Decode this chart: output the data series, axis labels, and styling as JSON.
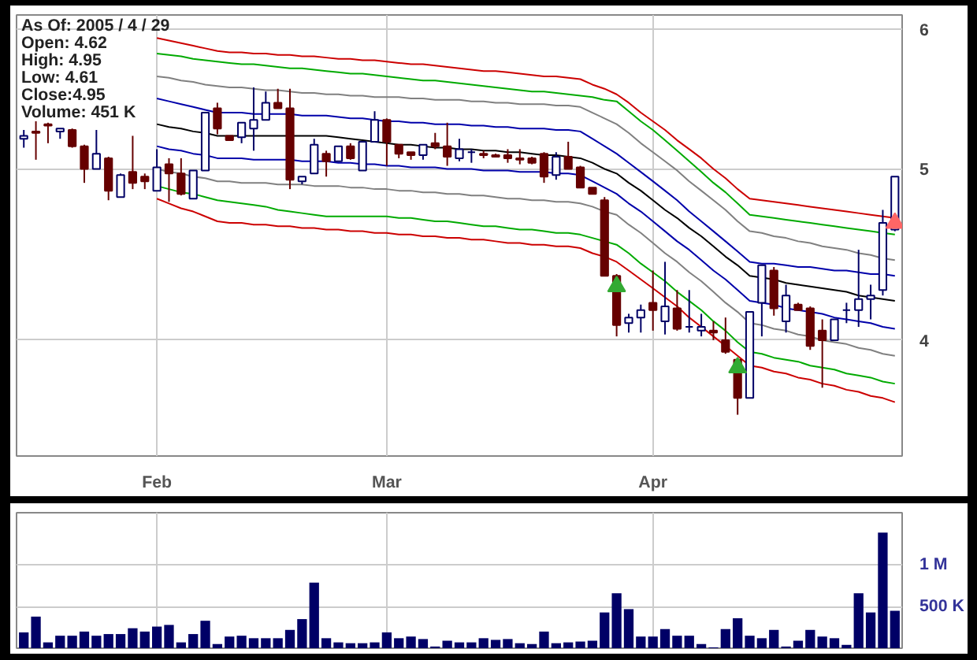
{
  "chart_data": [
    {
      "type": "candlestick",
      "annotations": [
        "As Of: 2005 / 4 / 29",
        "Open: 4.62",
        "High: 4.95",
        "Low: 4.61",
        "Close:4.95",
        "Volume: 451 K"
      ],
      "categories": [
        null,
        null,
        null,
        null,
        null,
        null,
        null,
        null,
        null,
        null,
        null,
        "Feb",
        null,
        null,
        null,
        null,
        null,
        null,
        null,
        null,
        null,
        null,
        null,
        null,
        null,
        null,
        null,
        null,
        null,
        null,
        "Mar",
        null,
        null,
        null,
        null,
        null,
        null,
        null,
        null,
        null,
        null,
        null,
        null,
        null,
        null,
        null,
        null,
        null,
        null,
        null,
        null,
        null,
        "Apr",
        null,
        null,
        null,
        null,
        null,
        null,
        null,
        null,
        null,
        null,
        null,
        null,
        null,
        null,
        null,
        null,
        null,
        null,
        null,
        null
      ],
      "ohlc": [
        [
          5.2,
          5.26,
          5.14,
          5.22
        ],
        [
          5.25,
          5.32,
          5.06,
          5.24
        ],
        [
          5.3,
          5.31,
          5.17,
          5.29
        ],
        [
          5.25,
          5.27,
          5.2,
          5.27
        ],
        [
          5.26,
          5.27,
          5.14,
          5.15
        ],
        [
          5.15,
          5.16,
          4.91,
          5.0
        ],
        [
          5.0,
          5.26,
          5.0,
          5.1
        ],
        [
          5.07,
          5.08,
          4.8,
          4.86
        ],
        [
          4.82,
          4.97,
          4.82,
          4.96
        ],
        [
          4.98,
          5.22,
          4.87,
          4.91
        ],
        [
          4.95,
          4.97,
          4.87,
          4.92
        ],
        [
          4.86,
          5.13,
          4.86,
          5.01
        ],
        [
          5.03,
          5.07,
          4.79,
          4.97
        ],
        [
          4.97,
          5.07,
          4.83,
          4.84
        ],
        [
          4.81,
          4.99,
          4.81,
          4.99
        ],
        [
          4.99,
          5.38,
          4.99,
          5.38
        ],
        [
          5.41,
          5.45,
          5.23,
          5.27
        ],
        [
          5.22,
          5.22,
          5.19,
          5.19
        ],
        [
          5.21,
          5.31,
          5.17,
          5.31
        ],
        [
          5.27,
          5.56,
          5.12,
          5.33
        ],
        [
          5.33,
          5.53,
          5.33,
          5.45
        ],
        [
          5.45,
          5.55,
          5.41,
          5.41
        ],
        [
          5.41,
          5.55,
          4.87,
          4.93
        ],
        [
          4.92,
          4.95,
          4.9,
          4.95
        ],
        [
          4.97,
          5.2,
          4.97,
          5.16
        ],
        [
          5.1,
          5.12,
          4.95,
          5.05
        ],
        [
          5.05,
          5.15,
          5.05,
          5.15
        ],
        [
          5.15,
          5.17,
          5.06,
          5.07
        ],
        [
          4.99,
          5.18,
          4.99,
          5.18
        ],
        [
          5.18,
          5.39,
          5.18,
          5.33
        ],
        [
          5.33,
          5.34,
          5.02,
          5.18
        ],
        [
          5.16,
          5.16,
          5.07,
          5.1
        ],
        [
          5.11,
          5.11,
          5.06,
          5.09
        ],
        [
          5.09,
          5.16,
          5.06,
          5.16
        ],
        [
          5.17,
          5.24,
          5.13,
          5.15
        ],
        [
          5.15,
          5.31,
          5.02,
          5.08
        ],
        [
          5.07,
          5.2,
          5.05,
          5.13
        ],
        [
          5.11,
          5.13,
          5.04,
          5.11
        ],
        [
          5.1,
          5.12,
          5.07,
          5.09
        ],
        [
          5.09,
          5.1,
          5.08,
          5.08
        ],
        [
          5.09,
          5.13,
          5.04,
          5.07
        ],
        [
          5.07,
          5.13,
          5.03,
          5.06
        ],
        [
          5.07,
          5.08,
          5.03,
          5.04
        ],
        [
          5.1,
          5.11,
          4.91,
          4.95
        ],
        [
          4.96,
          5.11,
          4.93,
          5.08
        ],
        [
          5.08,
          5.18,
          5.0,
          5.0
        ],
        [
          5.01,
          5.02,
          4.88,
          4.88
        ],
        [
          4.88,
          4.88,
          4.84,
          4.84
        ],
        [
          4.8,
          4.82,
          4.35,
          4.35
        ],
        [
          4.35,
          4.36,
          4.02,
          4.08
        ],
        [
          4.09,
          4.14,
          4.04,
          4.12
        ],
        [
          4.12,
          4.19,
          4.04,
          4.16
        ],
        [
          4.2,
          4.38,
          4.05,
          4.16
        ],
        [
          4.1,
          4.43,
          4.03,
          4.18
        ],
        [
          4.17,
          4.27,
          4.05,
          4.06
        ],
        [
          4.07,
          4.27,
          4.04,
          4.07
        ],
        [
          4.05,
          4.14,
          4.02,
          4.07
        ],
        [
          4.05,
          4.1,
          4.0,
          4.04
        ],
        [
          4.0,
          4.12,
          3.93,
          3.94
        ],
        [
          3.9,
          3.9,
          3.63,
          3.71
        ],
        [
          3.71,
          4.15,
          3.71,
          4.15
        ],
        [
          4.2,
          4.41,
          4.02,
          4.41
        ],
        [
          4.38,
          4.4,
          4.13,
          4.17
        ],
        [
          4.1,
          4.3,
          4.04,
          4.24
        ],
        [
          4.19,
          4.2,
          4.16,
          4.16
        ],
        [
          4.17,
          4.18,
          3.95,
          3.97
        ],
        [
          4.05,
          4.11,
          3.76,
          4.0
        ],
        [
          4.0,
          4.11,
          4.0,
          4.11
        ],
        [
          4.16,
          4.2,
          4.09,
          4.16
        ],
        [
          4.16,
          4.5,
          4.07,
          4.22
        ],
        [
          4.22,
          4.3,
          4.11,
          4.24
        ],
        [
          4.27,
          4.74,
          4.24,
          4.66
        ],
        [
          4.62,
          4.95,
          4.61,
          4.95
        ]
      ],
      "series": [
        {
          "type": "line",
          "color": "#cc0000",
          "values": [
            null,
            null,
            null,
            null,
            null,
            null,
            null,
            null,
            null,
            null,
            null,
            5.93,
            5.91,
            5.89,
            5.87,
            5.85,
            5.83,
            5.82,
            5.82,
            5.81,
            5.81,
            5.8,
            5.8,
            5.79,
            5.79,
            5.78,
            5.77,
            5.77,
            5.76,
            5.76,
            5.75,
            5.74,
            5.73,
            5.73,
            5.72,
            5.71,
            5.7,
            5.69,
            5.68,
            5.68,
            5.67,
            5.66,
            5.65,
            5.64,
            5.64,
            5.63,
            5.62,
            5.58,
            5.55,
            5.51,
            5.45,
            5.38,
            5.32,
            5.26,
            5.19,
            5.13,
            5.07,
            5.0,
            4.94,
            4.87,
            4.81,
            4.8,
            4.79,
            4.78,
            4.77,
            4.76,
            4.75,
            4.74,
            4.73,
            4.72,
            4.71,
            4.7,
            4.69
          ]
        },
        {
          "type": "line",
          "color": "#00aa00",
          "values": [
            null,
            null,
            null,
            null,
            null,
            null,
            null,
            null,
            null,
            null,
            null,
            5.81,
            5.8,
            5.79,
            5.77,
            5.76,
            5.75,
            5.74,
            5.73,
            5.73,
            5.72,
            5.71,
            5.7,
            5.7,
            5.69,
            5.68,
            5.67,
            5.66,
            5.66,
            5.65,
            5.64,
            5.63,
            5.62,
            5.61,
            5.61,
            5.6,
            5.59,
            5.58,
            5.57,
            5.56,
            5.55,
            5.54,
            5.53,
            5.53,
            5.52,
            5.51,
            5.5,
            5.49,
            5.47,
            5.46,
            5.39,
            5.32,
            5.26,
            5.19,
            5.12,
            5.05,
            4.98,
            4.91,
            4.85,
            4.78,
            4.71,
            4.7,
            4.69,
            4.68,
            4.67,
            4.66,
            4.65,
            4.64,
            4.63,
            4.62,
            4.61,
            4.6,
            4.59
          ]
        },
        {
          "type": "line",
          "color": "#808080",
          "values": [
            null,
            null,
            null,
            null,
            null,
            null,
            null,
            null,
            null,
            null,
            null,
            5.64,
            5.63,
            5.61,
            5.6,
            5.58,
            5.57,
            5.56,
            5.56,
            5.55,
            5.54,
            5.54,
            5.53,
            5.52,
            5.52,
            5.51,
            5.51,
            5.5,
            5.5,
            5.49,
            5.49,
            5.49,
            5.48,
            5.48,
            5.47,
            5.47,
            5.47,
            5.46,
            5.46,
            5.45,
            5.45,
            5.44,
            5.44,
            5.44,
            5.43,
            5.43,
            5.42,
            5.38,
            5.34,
            5.3,
            5.24,
            5.17,
            5.11,
            5.05,
            4.99,
            4.92,
            4.86,
            4.8,
            4.74,
            4.67,
            4.61,
            4.6,
            4.58,
            4.57,
            4.55,
            4.54,
            4.52,
            4.51,
            4.5,
            4.48,
            4.47,
            4.45,
            4.44
          ]
        },
        {
          "type": "line",
          "color": "#0000aa",
          "values": [
            null,
            null,
            null,
            null,
            null,
            null,
            null,
            null,
            null,
            null,
            null,
            5.48,
            5.46,
            5.44,
            5.42,
            5.4,
            5.38,
            5.38,
            5.38,
            5.37,
            5.37,
            5.37,
            5.37,
            5.36,
            5.36,
            5.36,
            5.35,
            5.34,
            5.34,
            5.33,
            5.32,
            5.32,
            5.31,
            5.31,
            5.3,
            5.3,
            5.3,
            5.29,
            5.29,
            5.28,
            5.28,
            5.27,
            5.27,
            5.27,
            5.26,
            5.26,
            5.25,
            5.2,
            5.15,
            5.1,
            5.04,
            4.98,
            4.92,
            4.86,
            4.8,
            4.73,
            4.67,
            4.61,
            4.55,
            4.49,
            4.43,
            4.42,
            4.42,
            4.41,
            4.4,
            4.4,
            4.39,
            4.38,
            4.38,
            4.37,
            4.36,
            4.36,
            4.35
          ]
        },
        {
          "type": "line",
          "color": "#000000",
          "values": [
            null,
            null,
            null,
            null,
            null,
            null,
            null,
            null,
            null,
            null,
            null,
            5.3,
            5.28,
            5.27,
            5.25,
            5.24,
            5.22,
            5.22,
            5.22,
            5.22,
            5.22,
            5.22,
            5.22,
            5.22,
            5.22,
            5.22,
            5.21,
            5.2,
            5.19,
            5.18,
            5.17,
            5.16,
            5.16,
            5.15,
            5.14,
            5.14,
            5.13,
            5.13,
            5.12,
            5.12,
            5.11,
            5.11,
            5.1,
            5.09,
            5.09,
            5.08,
            5.07,
            5.04,
            5.0,
            4.97,
            4.91,
            4.86,
            4.8,
            4.74,
            4.69,
            4.63,
            4.58,
            4.52,
            4.46,
            4.41,
            4.35,
            4.34,
            4.33,
            4.31,
            4.3,
            4.29,
            4.28,
            4.27,
            4.26,
            4.24,
            4.23,
            4.22,
            4.21
          ]
        },
        {
          "type": "line",
          "color": "#0000aa",
          "values": [
            null,
            null,
            null,
            null,
            null,
            null,
            null,
            null,
            null,
            null,
            null,
            5.15,
            5.13,
            5.12,
            5.1,
            5.09,
            5.07,
            5.07,
            5.07,
            5.06,
            5.06,
            5.06,
            5.06,
            5.05,
            5.05,
            5.05,
            5.04,
            5.04,
            5.03,
            5.03,
            5.02,
            5.02,
            5.01,
            5.01,
            5.01,
            5.0,
            5.0,
            5.0,
            4.99,
            4.99,
            4.99,
            4.98,
            4.98,
            4.98,
            4.97,
            4.97,
            4.96,
            4.92,
            4.88,
            4.84,
            4.78,
            4.73,
            4.67,
            4.61,
            4.55,
            4.5,
            4.44,
            4.38,
            4.33,
            4.27,
            4.21,
            4.2,
            4.19,
            4.17,
            4.16,
            4.15,
            4.14,
            4.12,
            4.11,
            4.1,
            4.09,
            4.07,
            4.06
          ]
        },
        {
          "type": "line",
          "color": "#808080",
          "values": [
            null,
            null,
            null,
            null,
            null,
            null,
            null,
            null,
            null,
            null,
            null,
            5.0,
            4.98,
            4.97,
            4.95,
            4.94,
            4.92,
            4.92,
            4.91,
            4.91,
            4.91,
            4.9,
            4.9,
            4.9,
            4.89,
            4.89,
            4.89,
            4.88,
            4.88,
            4.87,
            4.87,
            4.86,
            4.86,
            4.85,
            4.85,
            4.84,
            4.84,
            4.83,
            4.83,
            4.82,
            4.81,
            4.81,
            4.8,
            4.8,
            4.79,
            4.79,
            4.78,
            4.76,
            4.73,
            4.71,
            4.65,
            4.6,
            4.54,
            4.48,
            4.43,
            4.37,
            4.32,
            4.26,
            4.2,
            4.15,
            4.09,
            4.08,
            4.06,
            4.05,
            4.03,
            4.02,
            4.0,
            3.99,
            3.98,
            3.96,
            3.95,
            3.93,
            3.92
          ]
        },
        {
          "type": "line",
          "color": "#00aa00",
          "values": [
            null,
            null,
            null,
            null,
            null,
            null,
            null,
            null,
            null,
            null,
            null,
            4.89,
            4.87,
            4.85,
            4.84,
            4.82,
            4.8,
            4.79,
            4.78,
            4.77,
            4.76,
            4.74,
            4.73,
            4.72,
            4.71,
            4.7,
            4.7,
            4.7,
            4.7,
            4.7,
            4.7,
            4.69,
            4.69,
            4.68,
            4.67,
            4.67,
            4.66,
            4.65,
            4.64,
            4.64,
            4.63,
            4.62,
            4.62,
            4.61,
            4.6,
            4.6,
            4.59,
            4.57,
            4.55,
            4.53,
            4.48,
            4.42,
            4.37,
            4.32,
            4.26,
            4.21,
            4.16,
            4.1,
            4.05,
            3.99,
            3.94,
            3.93,
            3.91,
            3.9,
            3.89,
            3.87,
            3.86,
            3.85,
            3.83,
            3.82,
            3.81,
            3.79,
            3.78
          ]
        },
        {
          "type": "line",
          "color": "#cc0000",
          "values": [
            null,
            null,
            null,
            null,
            null,
            null,
            null,
            null,
            null,
            null,
            null,
            4.81,
            4.78,
            4.75,
            4.73,
            4.7,
            4.67,
            4.66,
            4.66,
            4.65,
            4.65,
            4.64,
            4.64,
            4.63,
            4.63,
            4.62,
            4.62,
            4.61,
            4.61,
            4.6,
            4.6,
            4.59,
            4.59,
            4.58,
            4.58,
            4.57,
            4.57,
            4.56,
            4.56,
            4.55,
            4.54,
            4.54,
            4.53,
            4.53,
            4.52,
            4.52,
            4.51,
            4.48,
            4.46,
            4.43,
            4.38,
            4.33,
            4.28,
            4.23,
            4.18,
            4.12,
            4.07,
            4.02,
            3.97,
            3.92,
            3.87,
            3.86,
            3.84,
            3.83,
            3.81,
            3.8,
            3.78,
            3.77,
            3.75,
            3.74,
            3.72,
            3.71,
            3.69
          ]
        },
        {
          "type": "scatter",
          "marker": "triangle",
          "color": "#33aa33",
          "values": [
            null,
            null,
            null,
            null,
            null,
            null,
            null,
            null,
            null,
            null,
            null,
            null,
            null,
            null,
            null,
            null,
            null,
            null,
            null,
            null,
            null,
            null,
            null,
            null,
            null,
            null,
            null,
            null,
            null,
            null,
            null,
            null,
            null,
            null,
            null,
            null,
            null,
            null,
            null,
            null,
            null,
            null,
            null,
            null,
            null,
            null,
            null,
            null,
            null,
            4.29,
            null,
            null,
            null,
            null,
            null,
            null,
            null,
            null,
            null,
            3.86,
            null,
            null,
            null,
            null,
            null,
            null,
            null,
            null,
            null,
            null,
            null,
            null,
            null
          ]
        },
        {
          "type": "scatter",
          "marker": "triangle",
          "color": "#ff6666",
          "values": [
            null,
            null,
            null,
            null,
            null,
            null,
            null,
            null,
            null,
            null,
            null,
            null,
            null,
            null,
            null,
            null,
            null,
            null,
            null,
            null,
            null,
            null,
            null,
            null,
            null,
            null,
            null,
            null,
            null,
            null,
            null,
            null,
            null,
            null,
            null,
            null,
            null,
            null,
            null,
            null,
            null,
            null,
            null,
            null,
            null,
            null,
            null,
            null,
            null,
            null,
            null,
            null,
            null,
            null,
            null,
            null,
            null,
            null,
            null,
            null,
            null,
            null,
            null,
            null,
            null,
            null,
            null,
            null,
            null,
            null,
            null,
            null,
            4.66
          ]
        }
      ],
      "ylim": [
        3.44,
        6.11
      ],
      "yticks": [
        4,
        5,
        6
      ],
      "log": true,
      "grid": true
    },
    {
      "type": "bar",
      "color": "#000066",
      "categories": [
        null,
        null,
        null,
        null,
        null,
        null,
        null,
        null,
        null,
        null,
        null,
        null,
        null,
        null,
        null,
        null,
        null,
        null,
        null,
        null,
        null,
        null,
        null,
        null,
        null,
        null,
        null,
        null,
        null,
        null,
        null,
        null,
        null,
        null,
        null,
        null,
        null,
        null,
        null,
        null,
        null,
        null,
        null,
        null,
        null,
        null,
        null,
        null,
        null,
        null,
        null,
        null,
        null,
        null,
        null,
        null,
        null,
        null,
        null,
        null,
        null,
        null,
        null,
        null,
        null,
        null,
        null,
        null,
        null,
        null,
        null,
        null,
        null
      ],
      "values": [
        190000,
        380000,
        70000,
        150000,
        150000,
        200000,
        150000,
        170000,
        170000,
        240000,
        200000,
        260000,
        280000,
        70000,
        170000,
        330000,
        50000,
        140000,
        150000,
        120000,
        120000,
        120000,
        220000,
        350000,
        790000,
        120000,
        70000,
        60000,
        60000,
        70000,
        190000,
        120000,
        140000,
        110000,
        20000,
        90000,
        70000,
        70000,
        120000,
        100000,
        110000,
        60000,
        50000,
        200000,
        60000,
        70000,
        80000,
        90000,
        430000,
        660000,
        470000,
        140000,
        140000,
        230000,
        150000,
        150000,
        50000,
        10000,
        230000,
        360000,
        150000,
        120000,
        220000,
        20000,
        90000,
        220000,
        140000,
        120000,
        40000,
        660000,
        430000,
        1390000,
        450000
      ],
      "ylim": [
        0,
        1630000
      ],
      "yticks": [
        {
          "value": 500000,
          "label": "500 K"
        },
        {
          "value": 1000000,
          "label": "1 M"
        }
      ],
      "grid": true,
      "tick_labels": "y"
    }
  ]
}
